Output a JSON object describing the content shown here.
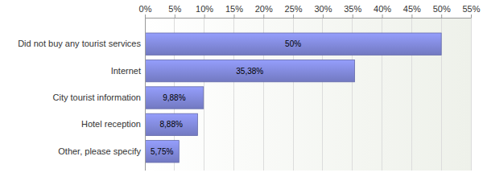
{
  "chart_data": {
    "type": "bar",
    "orientation": "horizontal",
    "categories": [
      "Did not buy any tourist services",
      "Internet",
      "City tourist information",
      "Hotel reception",
      "Other, please specify"
    ],
    "values": [
      50,
      35.38,
      9.88,
      8.88,
      5.75
    ],
    "value_labels": [
      "50%",
      "35,38%",
      "9,88%",
      "8,88%",
      "5,75%"
    ],
    "data_labels": true,
    "color": "#7d84d3",
    "xlim": [
      0,
      55
    ],
    "xticks": [
      {
        "value": 0,
        "label": "0%"
      },
      {
        "value": 5,
        "label": "5%"
      },
      {
        "value": 10,
        "label": "10%"
      },
      {
        "value": 15,
        "label": "15%"
      },
      {
        "value": 20,
        "label": "20%"
      },
      {
        "value": 25,
        "label": "25%"
      },
      {
        "value": 30,
        "label": "30%"
      },
      {
        "value": 35,
        "label": "35%"
      },
      {
        "value": 40,
        "label": "40%"
      },
      {
        "value": 45,
        "label": "45%"
      },
      {
        "value": 50,
        "label": "50%"
      },
      {
        "value": 55,
        "label": "55%"
      }
    ],
    "grid": true
  }
}
